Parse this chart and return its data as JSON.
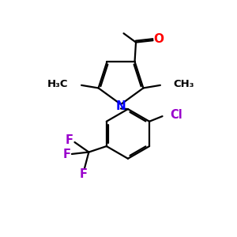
{
  "background_color": "#ffffff",
  "figsize": [
    3.0,
    3.0
  ],
  "dpi": 100,
  "bond_color": "#000000",
  "bond_lw": 1.6,
  "atom_colors": {
    "N": "#0000ff",
    "O": "#ff0000",
    "Cl": "#9900cc",
    "F": "#9900cc",
    "C": "#000000"
  },
  "xlim": [
    0,
    10
  ],
  "ylim": [
    0,
    10
  ]
}
